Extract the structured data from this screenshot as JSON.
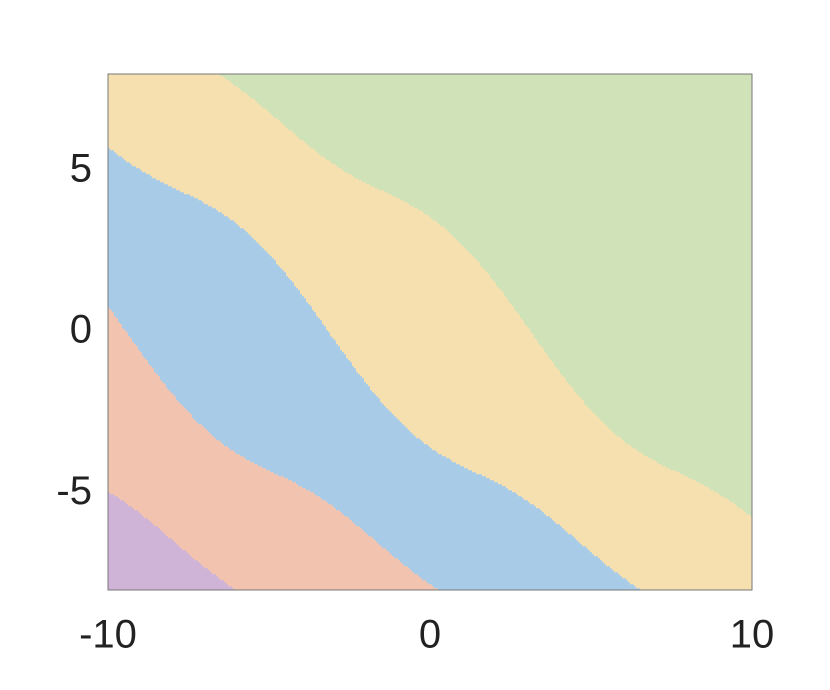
{
  "chart_data": {
    "type": "basin",
    "xlim": [
      -10,
      10
    ],
    "ylim": [
      -8,
      8
    ],
    "xticks": [
      -10,
      0,
      10
    ],
    "yticks": [
      -5,
      0,
      5
    ],
    "colors": [
      "#d0b4d8",
      "#f2c4b0",
      "#a8cce8",
      "#f7e0b0",
      "#d0e2b8"
    ],
    "frame_color": "#777777"
  }
}
